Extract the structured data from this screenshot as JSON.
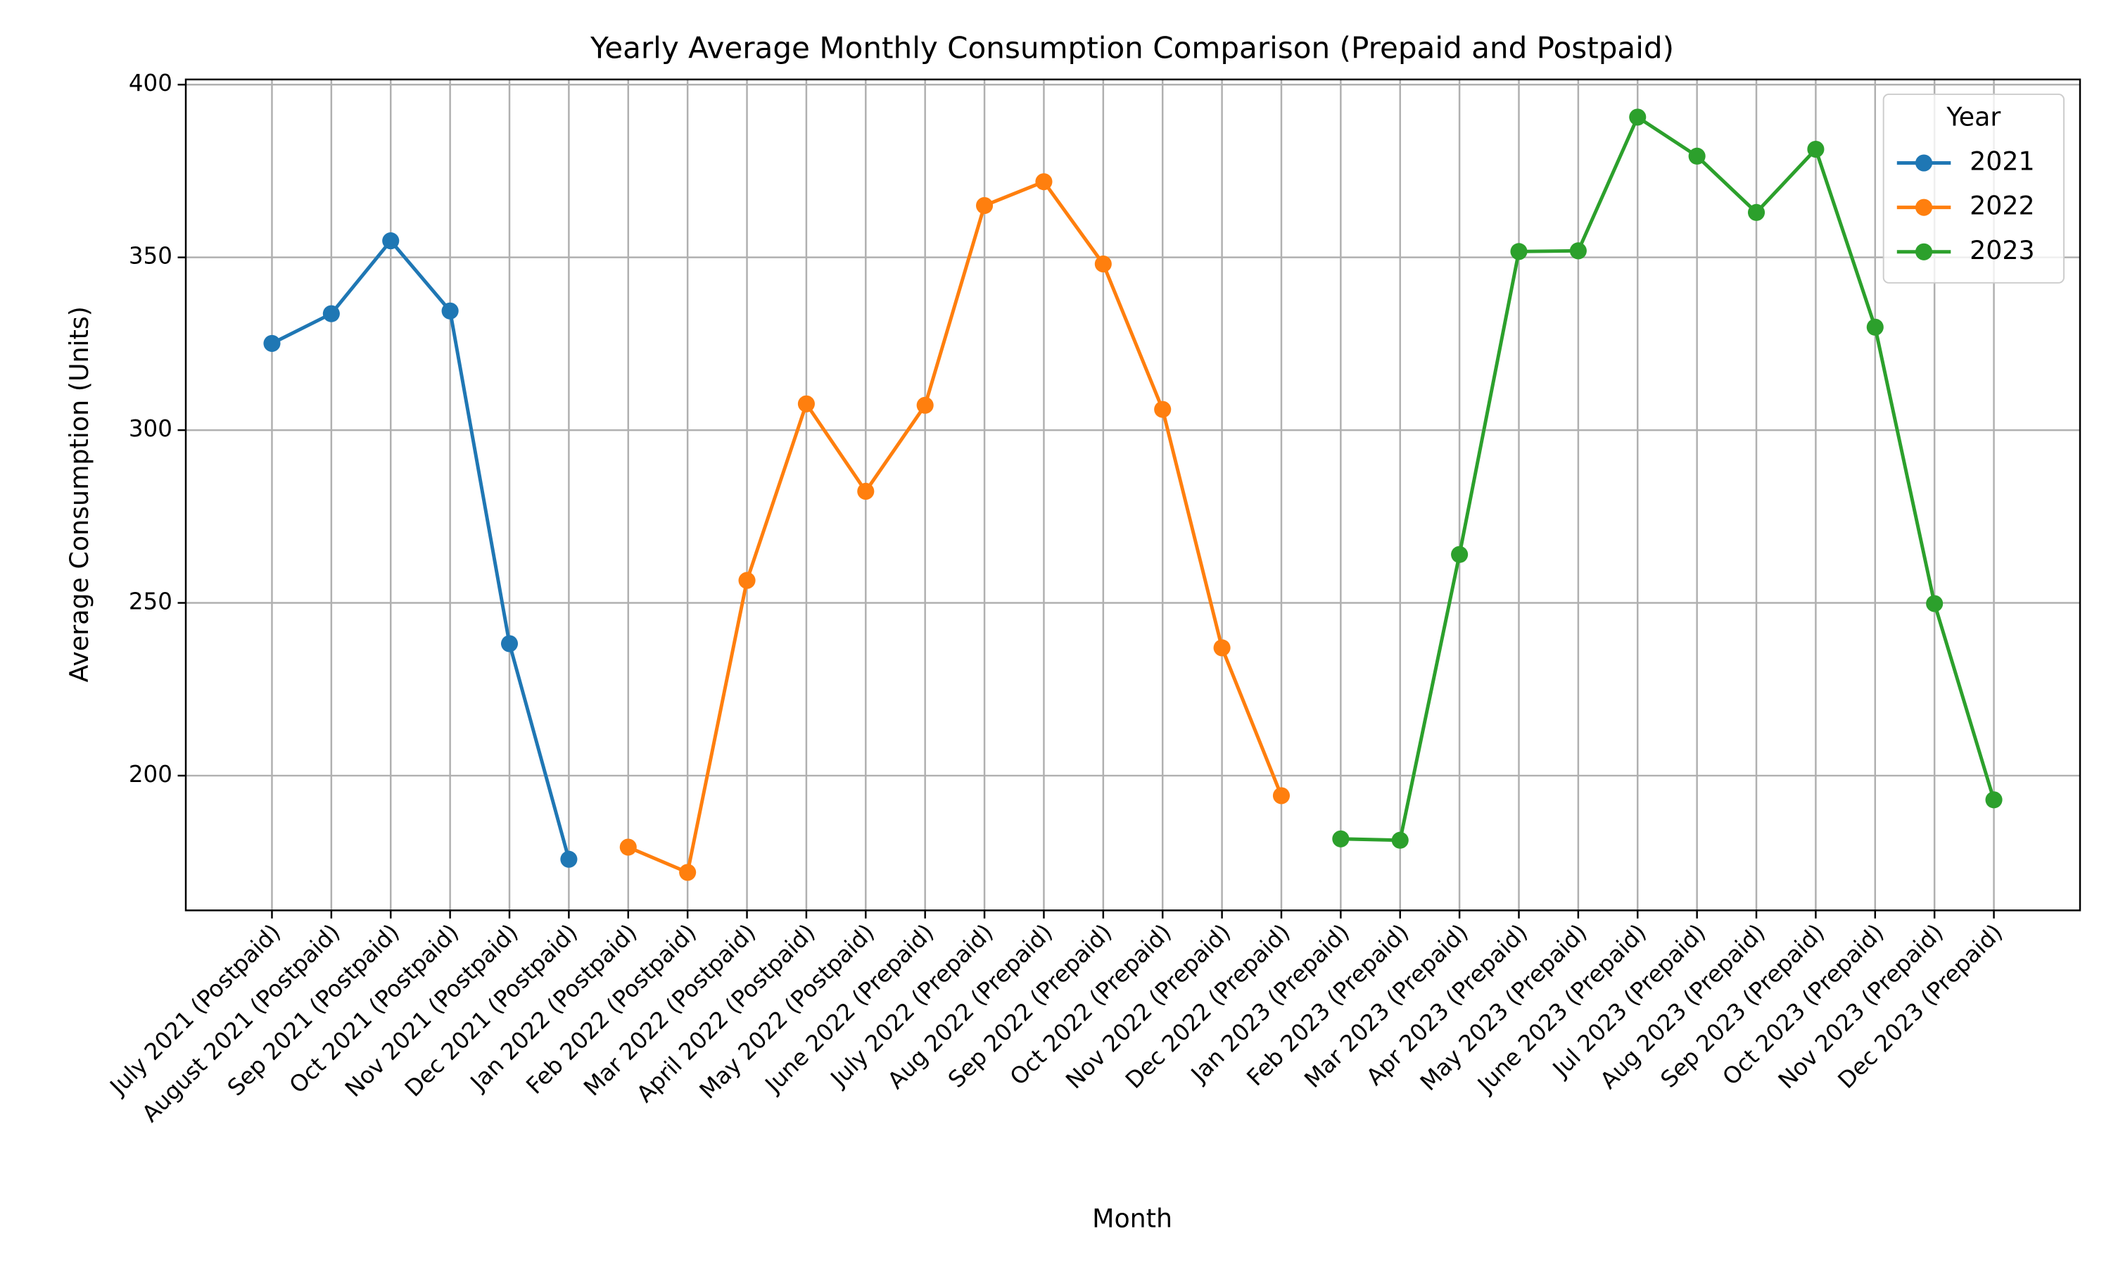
{
  "chart_data": {
    "type": "line",
    "title": "Yearly Average Monthly Consumption Comparison (Prepaid and Postpaid)",
    "x_label": "Month",
    "y_label": "Average Consumption (Units)",
    "categories": [
      "July 2021 (Postpaid)",
      "August 2021 (Postpaid)",
      "Sep 2021 (Postpaid)",
      "Oct 2021 (Postpaid)",
      "Nov 2021 (Postpaid)",
      "Dec 2021 (Postpaid)",
      "Jan 2022 (Postpaid)",
      "Feb 2022 (Postpaid)",
      "Mar 2022 (Postpaid)",
      "April 2022 (Postpaid)",
      "May 2022 (Postpaid)",
      "June 2022 (Prepaid)",
      "July 2022 (Prepaid)",
      "Aug 2022 (Prepaid)",
      "Sep 2022 (Prepaid)",
      "Oct 2022 (Prepaid)",
      "Nov 2022 (Prepaid)",
      "Dec 2022 (Prepaid)",
      "Jan 2023 (Prepaid)",
      "Feb 2023 (Prepaid)",
      "Mar 2023 (Prepaid)",
      "Apr 2023 (Prepaid)",
      "May 2023 (Prepaid)",
      "June 2023 (Prepaid)",
      "Jul 2023 (Prepaid)",
      "Aug 2023 (Prepaid)",
      "Sep 2023 (Prepaid)",
      "Oct 2023 (Prepaid)",
      "Nov 2023 (Prepaid)",
      "Dec 2023 (Prepaid)"
    ],
    "series": [
      {
        "name": "2021",
        "color": "#1f77b4",
        "values": [
          325.1,
          333.7,
          354.8,
          334.5,
          238.2,
          175.8,
          null,
          null,
          null,
          null,
          null,
          null,
          null,
          null,
          null,
          null,
          null,
          null,
          null,
          null,
          null,
          null,
          null,
          null,
          null,
          null,
          null,
          null,
          null,
          null
        ]
      },
      {
        "name": "2022",
        "color": "#ff7f0e",
        "values": [
          null,
          null,
          null,
          null,
          null,
          null,
          179.3,
          172,
          256.5,
          307.6,
          282.3,
          307.2,
          365,
          371.9,
          348.1,
          306,
          237,
          194.2,
          null,
          null,
          null,
          null,
          null,
          null,
          null,
          null,
          null,
          null,
          null,
          null
        ]
      },
      {
        "name": "2023",
        "color": "#2ca02c",
        "values": [
          null,
          null,
          null,
          null,
          null,
          null,
          null,
          null,
          null,
          null,
          null,
          null,
          null,
          null,
          null,
          null,
          null,
          null,
          181.7,
          181.3,
          264,
          351.7,
          351.9,
          390.6,
          379.3,
          363,
          381.3,
          329.8,
          249.8,
          193
        ]
      }
    ],
    "legend_title": "Year",
    "legend": "upper right",
    "ylim": [
      161,
      401.5
    ],
    "yticks": [
      200,
      250,
      300,
      350,
      400
    ],
    "grid": true
  }
}
